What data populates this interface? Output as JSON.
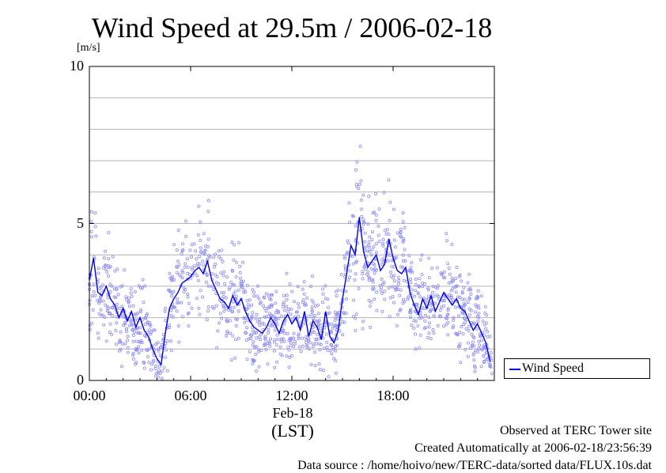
{
  "title": "Wind Speed at 29.5m / 2006-02-18",
  "y_unit": "[m/s]",
  "x_date_label": "Feb-18",
  "x_unit_label": "(LST)",
  "credits": {
    "line1": "Observed at TERC Tower site",
    "line2": "Created Automatically at 2006-02-18/23:56:39",
    "line3": "Data source : /home/hoivo/new/TERC-data/sorted  data/FLUX.10s.dat"
  },
  "colors": {
    "line": "#0000e6",
    "scatter": "#8c8cf5",
    "grid": "#b4b4b4"
  },
  "chart_data": {
    "type": "line",
    "title": "Wind Speed at 29.5m / 2006-02-18",
    "xlabel": "(LST)",
    "ylabel": "[m/s]",
    "xlim": [
      0,
      24
    ],
    "ylim": [
      0,
      10
    ],
    "x_ticks": [
      0,
      6,
      12,
      18
    ],
    "x_tick_labels": [
      "00:00",
      "06:00",
      "12:00",
      "18:00"
    ],
    "y_ticks": [
      0,
      5,
      10
    ],
    "y_tick_labels": [
      "0",
      "5",
      "10"
    ],
    "grid": true,
    "legend": {
      "position": "bottom-right-outside",
      "entries": [
        "Wind Speed"
      ]
    },
    "series": [
      {
        "name": "Wind Speed",
        "kind": "line",
        "x": [
          0.0,
          0.25,
          0.5,
          0.75,
          1.0,
          1.25,
          1.5,
          1.75,
          2.0,
          2.25,
          2.5,
          2.75,
          3.0,
          3.25,
          3.5,
          3.75,
          4.0,
          4.25,
          4.5,
          4.75,
          5.0,
          5.25,
          5.5,
          5.75,
          6.0,
          6.25,
          6.5,
          6.75,
          7.0,
          7.25,
          7.5,
          7.75,
          8.0,
          8.25,
          8.5,
          8.75,
          9.0,
          9.25,
          9.5,
          9.75,
          10.0,
          10.25,
          10.5,
          10.75,
          11.0,
          11.25,
          11.5,
          11.75,
          12.0,
          12.25,
          12.5,
          12.75,
          13.0,
          13.25,
          13.5,
          13.75,
          14.0,
          14.25,
          14.5,
          14.75,
          15.0,
          15.25,
          15.5,
          15.75,
          16.0,
          16.25,
          16.5,
          16.75,
          17.0,
          17.25,
          17.5,
          17.75,
          18.0,
          18.25,
          18.5,
          18.75,
          19.0,
          19.25,
          19.5,
          19.75,
          20.0,
          20.25,
          20.5,
          20.75,
          21.0,
          21.25,
          21.5,
          21.75,
          22.0,
          22.25,
          22.5,
          22.75,
          23.0,
          23.25,
          23.5,
          23.75
        ],
        "y": [
          3.2,
          3.9,
          2.8,
          2.7,
          3.0,
          2.6,
          2.4,
          2.0,
          2.3,
          1.9,
          2.2,
          1.7,
          2.0,
          1.6,
          1.4,
          1.0,
          0.7,
          0.5,
          1.5,
          2.3,
          2.6,
          2.8,
          3.1,
          3.2,
          3.3,
          3.5,
          3.6,
          3.4,
          3.8,
          3.2,
          2.9,
          2.6,
          2.5,
          2.3,
          2.7,
          2.4,
          2.6,
          2.2,
          1.9,
          1.7,
          1.6,
          1.5,
          1.7,
          2.0,
          1.8,
          1.5,
          1.9,
          2.1,
          1.8,
          2.0,
          1.6,
          2.2,
          1.4,
          1.9,
          1.7,
          1.3,
          2.2,
          1.4,
          1.2,
          1.6,
          2.6,
          3.4,
          4.3,
          4.0,
          5.2,
          4.1,
          3.6,
          3.8,
          4.0,
          3.5,
          3.7,
          4.5,
          3.9,
          3.5,
          3.4,
          3.6,
          2.8,
          2.4,
          2.1,
          2.6,
          2.3,
          2.7,
          2.2,
          2.5,
          2.8,
          2.6,
          2.4,
          2.6,
          2.3,
          2.2,
          1.9,
          1.6,
          1.8,
          1.5,
          1.2,
          0.6
        ]
      },
      {
        "name": "",
        "kind": "scatter",
        "note": "10 s raw samples shown as open circles around the line; visible maxima about 7.4 m/s near 15:40"
      }
    ]
  }
}
